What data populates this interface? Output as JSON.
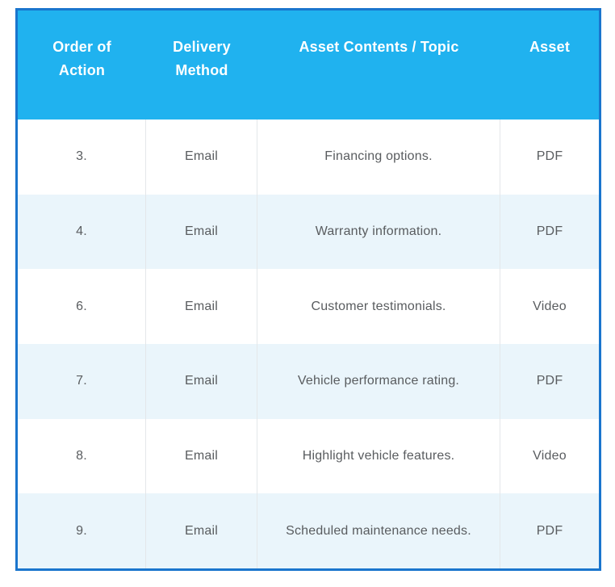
{
  "table": {
    "headers": {
      "order": "Order of\nAction",
      "delivery": "Delivery\nMethod",
      "topic": "Asset Contents / Topic",
      "asset": "Asset"
    },
    "rows": [
      {
        "order": "3.",
        "delivery": "Email",
        "topic": "Financing options.",
        "asset": "PDF"
      },
      {
        "order": "4.",
        "delivery": "Email",
        "topic": "Warranty information.",
        "asset": "PDF"
      },
      {
        "order": "6.",
        "delivery": "Email",
        "topic": "Customer testimonials.",
        "asset": "Video"
      },
      {
        "order": "7.",
        "delivery": "Email",
        "topic": "Vehicle performance rating.",
        "asset": "PDF"
      },
      {
        "order": "8.",
        "delivery": "Email",
        "topic": "Highlight vehicle features.",
        "asset": "Video"
      },
      {
        "order": "9.",
        "delivery": "Email",
        "topic": "Scheduled maintenance needs.",
        "asset": "PDF"
      }
    ],
    "colors": {
      "outer_border": "#1a75cd",
      "header_background": "#20b2ef",
      "header_text": "#ffffff",
      "alternate_row_background": "#eaf5fb",
      "body_text": "#595c5f",
      "column_divider": "#e4e7ea"
    }
  }
}
